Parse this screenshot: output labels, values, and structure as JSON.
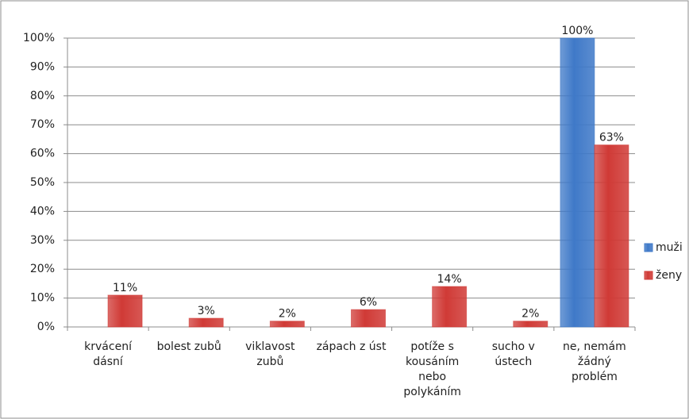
{
  "chart_data": {
    "type": "bar",
    "categories": [
      "krvácení dásní",
      "bolest zubů",
      "viklavost zubů",
      "zápach z úst",
      "potíže s kousáním nebo polykáním",
      "sucho v ústech",
      "ne, nemám žádný problém"
    ],
    "series": [
      {
        "name": "muži",
        "color": "#3f79c8",
        "values": [
          null,
          null,
          null,
          null,
          null,
          null,
          100
        ],
        "value_labels": [
          null,
          null,
          null,
          null,
          null,
          null,
          "100%"
        ]
      },
      {
        "name": "ženy",
        "color": "#d03a36",
        "values": [
          11,
          3,
          2,
          6,
          14,
          2,
          63
        ],
        "value_labels": [
          "11%",
          "3%",
          "2%",
          "6%",
          "14%",
          "2%",
          "63%"
        ]
      }
    ],
    "ylim": [
      0,
      100
    ],
    "yticks": [
      {
        "value": 0,
        "label": "0%"
      },
      {
        "value": 10,
        "label": "10%"
      },
      {
        "value": 20,
        "label": "20%"
      },
      {
        "value": 30,
        "label": "30%"
      },
      {
        "value": 40,
        "label": "40%"
      },
      {
        "value": 50,
        "label": "50%"
      },
      {
        "value": 60,
        "label": "60%"
      },
      {
        "value": 70,
        "label": "70%"
      },
      {
        "value": 80,
        "label": "80%"
      },
      {
        "value": 90,
        "label": "90%"
      },
      {
        "value": 100,
        "label": "100%"
      }
    ],
    "grid": true,
    "legend": "right"
  }
}
